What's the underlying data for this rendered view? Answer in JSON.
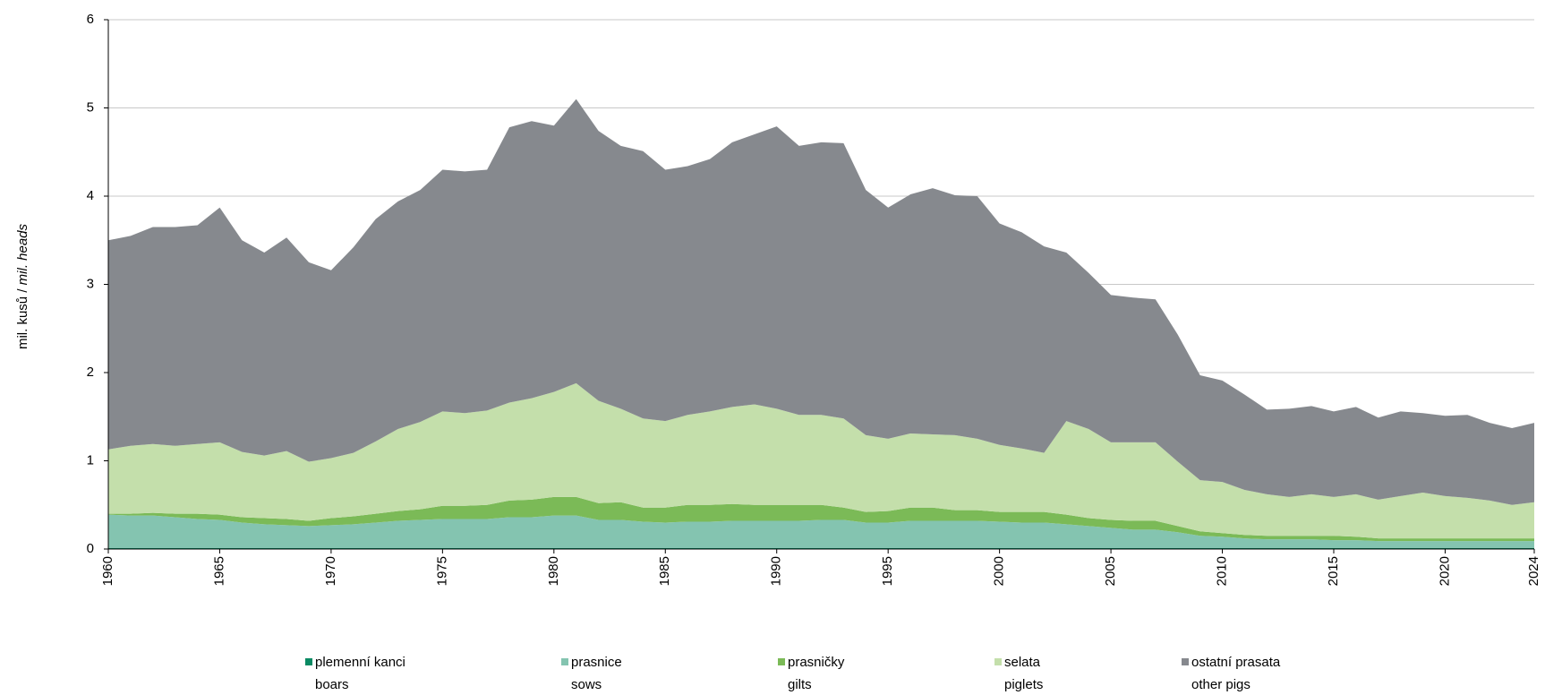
{
  "chart_data": {
    "type": "stacked_area",
    "ylabel_parts": [
      "mil. kusů / ",
      "mil. heads"
    ],
    "x": [
      1960,
      1961,
      1962,
      1963,
      1964,
      1965,
      1966,
      1967,
      1968,
      1969,
      1970,
      1971,
      1972,
      1973,
      1974,
      1975,
      1976,
      1977,
      1978,
      1979,
      1980,
      1981,
      1982,
      1983,
      1984,
      1985,
      1986,
      1987,
      1988,
      1989,
      1990,
      1991,
      1992,
      1993,
      1994,
      1995,
      1996,
      1997,
      1998,
      1999,
      2000,
      2001,
      2002,
      2003,
      2004,
      2005,
      2006,
      2007,
      2008,
      2009,
      2010,
      2011,
      2012,
      2013,
      2014,
      2015,
      2016,
      2017,
      2018,
      2019,
      2020,
      2021,
      2022,
      2023,
      2024
    ],
    "xlim": [
      1960,
      2024
    ],
    "xticks": [
      1960,
      1965,
      1970,
      1975,
      1980,
      1985,
      1990,
      1995,
      2000,
      2005,
      2010,
      2015,
      2020,
      2024
    ],
    "ylim": [
      0,
      6
    ],
    "yticks": [
      0,
      1,
      2,
      3,
      4,
      5,
      6
    ],
    "grid": true,
    "series": [
      {
        "name": "plemenní kanci",
        "name_en": "boars",
        "color": "#0a8a63",
        "values": [
          0.01,
          0.01,
          0.01,
          0.01,
          0.01,
          0.01,
          0.01,
          0.01,
          0.01,
          0.01,
          0.01,
          0.01,
          0.01,
          0.01,
          0.01,
          0.01,
          0.01,
          0.01,
          0.01,
          0.01,
          0.01,
          0.01,
          0.01,
          0.01,
          0.01,
          0.01,
          0.01,
          0.01,
          0.01,
          0.01,
          0.01,
          0.01,
          0.01,
          0.01,
          0.01,
          0.01,
          0.01,
          0.01,
          0.01,
          0.01,
          0.01,
          0.01,
          0.01,
          0.01,
          0.01,
          0.01,
          0.01,
          0.01,
          0.01,
          0.01,
          0.01,
          0.01,
          0.01,
          0.01,
          0.01,
          0.01,
          0.01,
          0.01,
          0.01,
          0.01,
          0.01,
          0.01,
          0.01,
          0.01,
          0.01
        ]
      },
      {
        "name": "prasnice",
        "name_en": "sows",
        "color": "#84c4b0",
        "values": [
          0.38,
          0.37,
          0.37,
          0.35,
          0.33,
          0.32,
          0.29,
          0.27,
          0.26,
          0.25,
          0.26,
          0.27,
          0.29,
          0.31,
          0.32,
          0.33,
          0.33,
          0.33,
          0.35,
          0.35,
          0.37,
          0.37,
          0.32,
          0.32,
          0.3,
          0.29,
          0.3,
          0.3,
          0.31,
          0.31,
          0.31,
          0.31,
          0.32,
          0.32,
          0.29,
          0.29,
          0.31,
          0.31,
          0.31,
          0.31,
          0.3,
          0.29,
          0.29,
          0.27,
          0.25,
          0.23,
          0.21,
          0.21,
          0.18,
          0.14,
          0.13,
          0.11,
          0.1,
          0.1,
          0.1,
          0.09,
          0.09,
          0.08,
          0.08,
          0.08,
          0.08,
          0.08,
          0.08,
          0.08,
          0.08
        ]
      },
      {
        "name": "prasničky",
        "name_en": "gilts",
        "color": "#7bba57",
        "values": [
          0.01,
          0.02,
          0.03,
          0.04,
          0.06,
          0.06,
          0.06,
          0.07,
          0.07,
          0.06,
          0.08,
          0.09,
          0.1,
          0.11,
          0.12,
          0.15,
          0.15,
          0.16,
          0.19,
          0.2,
          0.21,
          0.21,
          0.19,
          0.2,
          0.16,
          0.17,
          0.19,
          0.19,
          0.19,
          0.18,
          0.18,
          0.18,
          0.17,
          0.14,
          0.12,
          0.13,
          0.15,
          0.15,
          0.12,
          0.12,
          0.11,
          0.12,
          0.12,
          0.11,
          0.09,
          0.09,
          0.1,
          0.1,
          0.07,
          0.05,
          0.04,
          0.04,
          0.04,
          0.04,
          0.04,
          0.05,
          0.04,
          0.03,
          0.03,
          0.03,
          0.03,
          0.03,
          0.03,
          0.03,
          0.03
        ]
      },
      {
        "name": "selata",
        "name_en": "piglets",
        "color": "#c4dfab",
        "values": [
          0.73,
          0.77,
          0.78,
          0.77,
          0.79,
          0.82,
          0.74,
          0.71,
          0.77,
          0.67,
          0.68,
          0.72,
          0.82,
          0.93,
          0.99,
          1.07,
          1.05,
          1.07,
          1.11,
          1.15,
          1.19,
          1.29,
          1.16,
          1.06,
          1.01,
          0.98,
          1.02,
          1.06,
          1.1,
          1.14,
          1.09,
          1.02,
          1.02,
          1.01,
          0.87,
          0.82,
          0.84,
          0.83,
          0.85,
          0.81,
          0.76,
          0.72,
          0.67,
          1.06,
          1.01,
          0.88,
          0.89,
          0.89,
          0.73,
          0.58,
          0.58,
          0.51,
          0.47,
          0.44,
          0.47,
          0.44,
          0.48,
          0.44,
          0.48,
          0.52,
          0.48,
          0.46,
          0.43,
          0.38,
          0.41
        ]
      },
      {
        "name": "ostatní prasata",
        "name_en": "other pigs",
        "color": "#86898e",
        "values": [
          2.37,
          2.38,
          2.46,
          2.48,
          2.48,
          2.66,
          2.4,
          2.3,
          2.42,
          2.26,
          2.13,
          2.33,
          2.52,
          2.58,
          2.63,
          2.74,
          2.74,
          2.73,
          3.12,
          3.14,
          3.02,
          3.22,
          3.06,
          2.98,
          3.03,
          2.85,
          2.82,
          2.86,
          3.0,
          3.06,
          3.2,
          3.05,
          3.09,
          3.12,
          2.78,
          2.62,
          2.71,
          2.79,
          2.72,
          2.75,
          2.51,
          2.45,
          2.34,
          1.91,
          1.77,
          1.67,
          1.64,
          1.62,
          1.44,
          1.19,
          1.15,
          1.08,
          0.96,
          1.0,
          1.0,
          0.97,
          0.99,
          0.93,
          0.96,
          0.9,
          0.91,
          0.94,
          0.88,
          0.87,
          0.9
        ]
      }
    ]
  }
}
